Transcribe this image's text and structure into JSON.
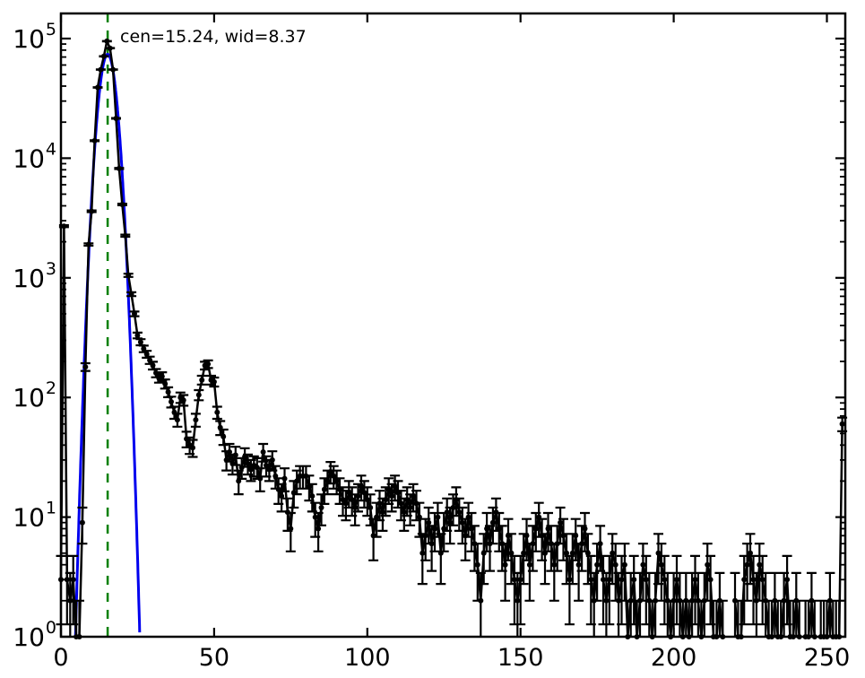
{
  "chart_data": {
    "type": "line",
    "subtype": "errorbar-histogram-on-log-scale",
    "title": "",
    "xlabel": "",
    "ylabel": "",
    "grid": false,
    "legend": null,
    "x_axis": {
      "min": 0,
      "max": 256,
      "ticks": [
        0,
        50,
        100,
        150,
        200,
        250
      ]
    },
    "y_axis": {
      "scale": "log",
      "min": 1,
      "max": 162000,
      "tick_exponents": [
        0,
        1,
        2,
        3,
        4,
        5
      ],
      "tick_base": "10"
    },
    "annotation": {
      "text": "cen=15.24, wid=8.37",
      "color": "#008000"
    },
    "center_line": {
      "x": 15.24,
      "color": "#008000",
      "linestyle": "dashed"
    },
    "fit_curve": {
      "name": "gaussian-fit",
      "color": "#0000ee",
      "cen": 15.24,
      "wid": 8.37,
      "peak": 74000,
      "zero_halfwidth": 10.5
    },
    "series": [
      {
        "name": "histogram-counts",
        "color": "#000000",
        "marker": "dot",
        "error": "sqrt(count)",
        "x_start": 0,
        "x_step": 1,
        "counts": [
          3,
          2700,
          3,
          2,
          3,
          1,
          1,
          9,
          180,
          1900,
          3600,
          14000,
          39000,
          55000,
          71000,
          95000,
          83000,
          55000,
          21500,
          8200,
          4100,
          2250,
          1050,
          730,
          500,
          330,
          290,
          255,
          230,
          205,
          185,
          160,
          145,
          150,
          130,
          111,
          92,
          75,
          65,
          100,
          95,
          45,
          40,
          38,
          65,
          105,
          140,
          185,
          190,
          140,
          135,
          75,
          56,
          47,
          30,
          35,
          28,
          33,
          20,
          26,
          32,
          28,
          25,
          27,
          26,
          21,
          35,
          27,
          25,
          30,
          22,
          17,
          15,
          21,
          11,
          8,
          16,
          20,
          22,
          22,
          22,
          18,
          15,
          10,
          8,
          12,
          17,
          20,
          24,
          22,
          20,
          17,
          14,
          13,
          16,
          14,
          12,
          15,
          18,
          16,
          14,
          12,
          7,
          10,
          13,
          11,
          14,
          17,
          15,
          18,
          16,
          13,
          11,
          14,
          12,
          15,
          13,
          10,
          5,
          7,
          9,
          6,
          8,
          10,
          5,
          8,
          11,
          9,
          12,
          14,
          11,
          9,
          7,
          10,
          8,
          6,
          4,
          2,
          5,
          8,
          6,
          9,
          11,
          8,
          6,
          4,
          7,
          5,
          3,
          2,
          3,
          5,
          7,
          4,
          6,
          8,
          10,
          7,
          5,
          8,
          6,
          4,
          6,
          9,
          7,
          5,
          3,
          5,
          7,
          4,
          6,
          8,
          5,
          3,
          2,
          4,
          6,
          3,
          2,
          3,
          5,
          4,
          2,
          3,
          4,
          1,
          2,
          3,
          1,
          2,
          4,
          3,
          2,
          1,
          2,
          5,
          4,
          3,
          2,
          1,
          2,
          3,
          2,
          1,
          2,
          1,
          2,
          3,
          2,
          1,
          2,
          4,
          3,
          1,
          1,
          2,
          1,
          0,
          0,
          0,
          2,
          1,
          1,
          3,
          4,
          5,
          3,
          2,
          4,
          3,
          2,
          1,
          1,
          2,
          1,
          1,
          2,
          3,
          1,
          1,
          2,
          1,
          0,
          1,
          1,
          2,
          1,
          0,
          1,
          1,
          1,
          2,
          1,
          1,
          1,
          60
        ]
      }
    ]
  }
}
